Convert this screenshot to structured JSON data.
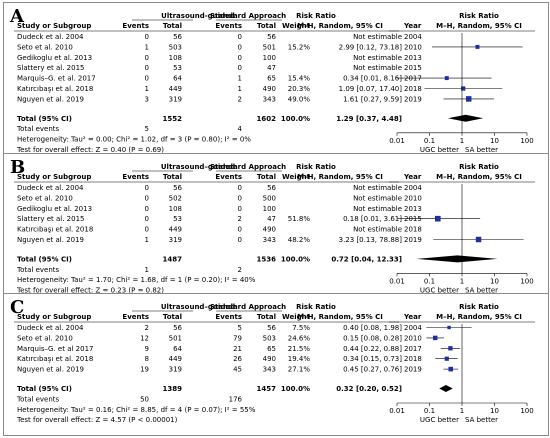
{
  "chart_data": [
    {
      "type": "forest",
      "panel_label": "A",
      "group1": "Ultrasound-guided",
      "group2": "Standard Approach",
      "col_study": "Study or Subgroup",
      "col_events": "Events",
      "col_total": "Total",
      "col_weight": "Weight",
      "rr_title": "Risk Ratio",
      "rr_sub": "M–H, Random, 95% CI",
      "col_year": "Year",
      "studies": [
        {
          "name": "Dudeck et al. 2004",
          "e1": "0",
          "t1": "56",
          "e2": "0",
          "t2": "56",
          "w": "",
          "ci": "Not estimable",
          "year": "2004",
          "rr": null,
          "lo": null,
          "hi": null
        },
        {
          "name": "Seto et al. 2010",
          "e1": "1",
          "t1": "503",
          "e2": "0",
          "t2": "501",
          "w": "15.2%",
          "ci": "2.99 [0.12, 73.18]",
          "year": "2010",
          "rr": 2.99,
          "lo": 0.12,
          "hi": 73.18
        },
        {
          "name": "Gedikoglu et al. 2013",
          "e1": "0",
          "t1": "108",
          "e2": "0",
          "t2": "100",
          "w": "",
          "ci": "Not estimable",
          "year": "2013",
          "rr": null,
          "lo": null,
          "hi": null
        },
        {
          "name": "Slattery et al. 2015",
          "e1": "0",
          "t1": "53",
          "e2": "0",
          "t2": "47",
          "w": "",
          "ci": "Not estimable",
          "year": "2015",
          "rr": null,
          "lo": null,
          "hi": null
        },
        {
          "name": "Marquis–G. et al. 2017",
          "e1": "0",
          "t1": "64",
          "e2": "1",
          "t2": "65",
          "w": "15.4%",
          "ci": "0.34 [0.01, 8.16]",
          "year": "2017",
          "rr": 0.34,
          "lo": 0.01,
          "hi": 8.16
        },
        {
          "name": "Katırcıbaşı et al. 2018",
          "e1": "1",
          "t1": "449",
          "e2": "1",
          "t2": "490",
          "w": "20.3%",
          "ci": "1.09 [0.07, 17.40]",
          "year": "2018",
          "rr": 1.09,
          "lo": 0.07,
          "hi": 17.4
        },
        {
          "name": "Nguyen et al. 2019",
          "e1": "3",
          "t1": "319",
          "e2": "2",
          "t2": "343",
          "w": "49.0%",
          "ci": "1.61 [0.27, 9.59]",
          "year": "2019",
          "rr": 1.61,
          "lo": 0.27,
          "hi": 9.59
        }
      ],
      "total": {
        "label": "Total (95% CI)",
        "t1": "1552",
        "t2": "1602",
        "w": "100.0%",
        "ci": "1.29 [0.37, 4.48]",
        "rr": 1.29,
        "lo": 0.37,
        "hi": 4.48
      },
      "total_events": {
        "label": "Total events",
        "e1": "5",
        "e2": "4"
      },
      "heterogeneity": "Heterogeneity: Tau² = 0.00; Chi² = 1.02, df = 3 (P = 0.80); I² = 0%",
      "overall": "Test for overall effect: Z = 0.40 (P = 0.69)",
      "ticks": [
        0.01,
        0.1,
        1,
        10,
        100
      ],
      "tick_labels": [
        "0.01",
        "0.1",
        "1",
        "10",
        "100"
      ],
      "xlim": [
        0.01,
        100
      ],
      "favours_left": "UGC better",
      "favours_right": "SA better"
    },
    {
      "type": "forest",
      "panel_label": "B",
      "group1": "Ultrasound–guided",
      "group2": "Standard Approach",
      "col_study": "Study or Subgroup",
      "col_events": "Events",
      "col_total": "Total",
      "col_weight": "Weight",
      "rr_title": "Risk Ratio",
      "rr_sub": "M–H, Random, 95% CI",
      "col_year": "Year",
      "studies": [
        {
          "name": "Dudeck et al. 2004",
          "e1": "0",
          "t1": "56",
          "e2": "0",
          "t2": "56",
          "w": "",
          "ci": "Not estimable",
          "year": "2004",
          "rr": null,
          "lo": null,
          "hi": null
        },
        {
          "name": "Seto et al. 2010",
          "e1": "0",
          "t1": "502",
          "e2": "0",
          "t2": "500",
          "w": "",
          "ci": "Not estimable",
          "year": "2010",
          "rr": null,
          "lo": null,
          "hi": null
        },
        {
          "name": "Gedikoglu et al. 2013",
          "e1": "0",
          "t1": "108",
          "e2": "0",
          "t2": "100",
          "w": "",
          "ci": "Not estimable",
          "year": "2013",
          "rr": null,
          "lo": null,
          "hi": null
        },
        {
          "name": "Slattery et al. 2015",
          "e1": "0",
          "t1": "53",
          "e2": "2",
          "t2": "47",
          "w": "51.8%",
          "ci": "0.18 [0.01, 3.61]",
          "year": "2015",
          "rr": 0.18,
          "lo": 0.01,
          "hi": 3.61
        },
        {
          "name": "Katırcıbaşı et al. 2018",
          "e1": "0",
          "t1": "449",
          "e2": "0",
          "t2": "490",
          "w": "",
          "ci": "Not estimable",
          "year": "2018",
          "rr": null,
          "lo": null,
          "hi": null
        },
        {
          "name": "Nguyen et al. 2019",
          "e1": "1",
          "t1": "319",
          "e2": "0",
          "t2": "343",
          "w": "48.2%",
          "ci": "3.23 [0.13, 78.88]",
          "year": "2019",
          "rr": 3.23,
          "lo": 0.13,
          "hi": 78.88
        }
      ],
      "total": {
        "label": "Total (95% CI)",
        "t1": "1487",
        "t2": "1536",
        "w": "100.0%",
        "ci": "0.72 [0.04, 12.33]",
        "rr": 0.72,
        "lo": 0.04,
        "hi": 12.33
      },
      "total_events": {
        "label": "Total events",
        "e1": "1",
        "e2": "2"
      },
      "heterogeneity": "Heterogeneity: Tau² = 1.70; Chi² = 1.68, df = 1 (P = 0.20); I² = 40%",
      "overall": "Test for overall effect: Z = 0.23 (P = 0.82)",
      "ticks": [
        0.01,
        0.1,
        1,
        10,
        100
      ],
      "tick_labels": [
        "0.01",
        "0.1",
        "1",
        "10",
        "100"
      ],
      "xlim": [
        0.01,
        100
      ],
      "favours_left": "UGC better",
      "favours_right": "SA better"
    },
    {
      "type": "forest",
      "panel_label": "C",
      "group1": "Ultrasound–guided",
      "group2": "Standard Approach",
      "col_study": "Study or Subgroup",
      "col_events": "Events",
      "col_total": "Total",
      "col_weight": "Weight",
      "rr_title": "Risk Ratio",
      "rr_sub": "M–H, Random, 95% CI",
      "col_year": "Year",
      "studies": [
        {
          "name": "Dudeck et al. 2004",
          "e1": "2",
          "t1": "56",
          "e2": "5",
          "t2": "56",
          "w": "7.5%",
          "ci": "0.40 [0.08, 1.98]",
          "year": "2004",
          "rr": 0.4,
          "lo": 0.08,
          "hi": 1.98
        },
        {
          "name": "Seto et al. 2010",
          "e1": "12",
          "t1": "501",
          "e2": "79",
          "t2": "503",
          "w": "24.6%",
          "ci": "0.15 [0.08, 0.28]",
          "year": "2010",
          "rr": 0.15,
          "lo": 0.08,
          "hi": 0.28
        },
        {
          "name": "Marquis–G. et al 2017",
          "e1": "9",
          "t1": "64",
          "e2": "21",
          "t2": "65",
          "w": "21.5%",
          "ci": "0.44 [0.22, 0.88]",
          "year": "2017",
          "rr": 0.44,
          "lo": 0.22,
          "hi": 0.88
        },
        {
          "name": "Katırcıbaşı et al. 2018",
          "e1": "8",
          "t1": "449",
          "e2": "26",
          "t2": "490",
          "w": "19.4%",
          "ci": "0.34 [0.15, 0.73]",
          "year": "2018",
          "rr": 0.34,
          "lo": 0.15,
          "hi": 0.73
        },
        {
          "name": "Nguyen et al. 2019",
          "e1": "19",
          "t1": "319",
          "e2": "45",
          "t2": "343",
          "w": "27.1%",
          "ci": "0.45 [0.27, 0.76]",
          "year": "2019",
          "rr": 0.45,
          "lo": 0.27,
          "hi": 0.76
        }
      ],
      "total": {
        "label": "Total (95% CI)",
        "t1": "1389",
        "t2": "1457",
        "w": "100.0%",
        "ci": "0.32 [0.20, 0.52]",
        "rr": 0.32,
        "lo": 0.2,
        "hi": 0.52
      },
      "total_events": {
        "label": "Total events",
        "e1": "50",
        "e2": "176"
      },
      "heterogeneity": "Heterogeneity: Tau² = 0.16; Chi² = 8.85, df = 4 (P = 0.07); I² = 55%",
      "overall": "Test for overall effect: Z = 4.57 (P < 0.00001)",
      "ticks": [
        0.01,
        0.1,
        1,
        10,
        100
      ],
      "tick_labels": [
        "0.01",
        "0.1",
        "1",
        "10",
        "100"
      ],
      "xlim": [
        0.01,
        100
      ],
      "favours_left": "UGC better",
      "favours_right": "SA better"
    }
  ],
  "colors": {
    "marker": "#1f2fa0",
    "text": "#000000",
    "border": "#8a8a8a"
  }
}
